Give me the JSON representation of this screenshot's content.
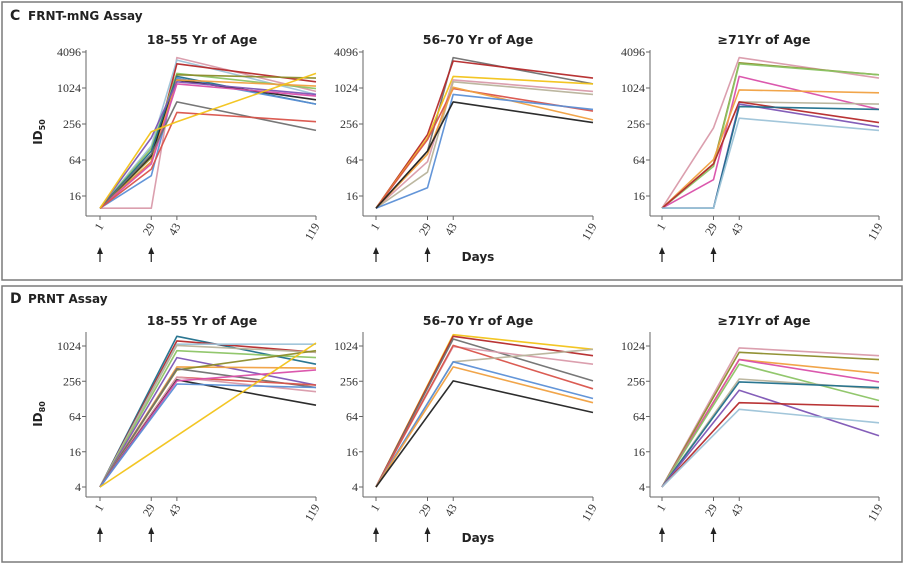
{
  "colors": {
    "darkred": "#b5292a",
    "red": "#d9534a",
    "yellow": "#f2c318",
    "gray": "#707070",
    "black": "#222222",
    "blue": "#5b8fd6",
    "lightblue": "#9dc3d8",
    "pink": "#d99aaa",
    "green": "#8cc465",
    "olive": "#8c8c2a",
    "teal": "#1f6f8b",
    "magenta": "#d94fa9",
    "purple": "#7d55b5",
    "orange": "#f0a040",
    "khaki": "#b8b39b"
  },
  "panels": [
    {
      "letter": "C",
      "title": "FRNT-mNG Assay",
      "ylabel": "ID",
      "ylabel_sub": "50",
      "xlabel": "Days"
    },
    {
      "letter": "D",
      "title": "PRNT Assay",
      "ylabel": "ID",
      "ylabel_sub": "80",
      "xlabel": "Days"
    }
  ],
  "chart_data": [
    {
      "type": "line",
      "panel": "C",
      "title": "18–55 Yr of Age",
      "x": [
        1,
        29,
        43,
        119
      ],
      "x_ticks": [
        "1",
        "29",
        "43",
        "119"
      ],
      "y_scale": "log2",
      "y_ticks": [
        "16",
        "64",
        "256",
        "1024",
        "4096"
      ],
      "ylim": [
        7,
        4096
      ],
      "dose_arrows_at_days": [
        1,
        29
      ],
      "series": [
        {
          "color": "pink",
          "values": [
            10,
            10,
            3300,
            900
          ]
        },
        {
          "color": "lightblue",
          "values": [
            10,
            110,
            3000,
            800
          ]
        },
        {
          "color": "darkred",
          "values": [
            10,
            60,
            2600,
            1300
          ]
        },
        {
          "color": "green",
          "values": [
            10,
            100,
            1800,
            1000
          ]
        },
        {
          "color": "olive",
          "values": [
            10,
            70,
            1700,
            1500
          ]
        },
        {
          "color": "teal",
          "values": [
            10,
            90,
            1600,
            550
          ]
        },
        {
          "color": "blue",
          "values": [
            10,
            35,
            1500,
            550
          ]
        },
        {
          "color": "black",
          "values": [
            10,
            75,
            1400,
            650
          ]
        },
        {
          "color": "orange",
          "values": [
            10,
            60,
            1400,
            1100
          ]
        },
        {
          "color": "purple",
          "values": [
            10,
            150,
            1300,
            800
          ]
        },
        {
          "color": "magenta",
          "values": [
            10,
            55,
            1200,
            750
          ]
        },
        {
          "color": "gray",
          "values": [
            10,
            80,
            600,
            200
          ]
        },
        {
          "color": "red",
          "values": [
            10,
            45,
            400,
            280
          ]
        },
        {
          "color": "yellow",
          "values": [
            10,
            190,
            280,
            1800
          ]
        }
      ]
    },
    {
      "type": "line",
      "panel": "C",
      "title": "56–70 Yr of Age",
      "x": [
        1,
        29,
        43,
        119
      ],
      "x_ticks": [
        "1",
        "29",
        "43",
        "119"
      ],
      "y_scale": "log2",
      "y_ticks": [
        "16",
        "64",
        "256",
        "1024",
        "4096"
      ],
      "ylim": [
        7,
        4096
      ],
      "dose_arrows_at_days": [
        1,
        29
      ],
      "series": [
        {
          "color": "gray",
          "values": [
            10,
            90,
            3300,
            1200
          ]
        },
        {
          "color": "darkred",
          "values": [
            10,
            170,
            2900,
            1500
          ]
        },
        {
          "color": "yellow",
          "values": [
            10,
            150,
            1600,
            1200
          ]
        },
        {
          "color": "pink",
          "values": [
            10,
            60,
            1400,
            900
          ]
        },
        {
          "color": "khaki",
          "values": [
            10,
            40,
            1300,
            800
          ]
        },
        {
          "color": "red",
          "values": [
            10,
            140,
            1000,
            420
          ]
        },
        {
          "color": "orange",
          "values": [
            10,
            80,
            1050,
            300
          ]
        },
        {
          "color": "blue",
          "values": [
            10,
            22,
            800,
            450
          ]
        },
        {
          "color": "black",
          "values": [
            10,
            90,
            600,
            270
          ]
        }
      ]
    },
    {
      "type": "line",
      "panel": "C",
      "title": "≥71Yr of Age",
      "x": [
        1,
        29,
        43,
        119
      ],
      "x_ticks": [
        "1",
        "29",
        "43",
        "119"
      ],
      "y_scale": "log2",
      "y_ticks": [
        "16",
        "64",
        "256",
        "1024",
        "4096"
      ],
      "ylim": [
        7,
        4096
      ],
      "dose_arrows_at_days": [
        1,
        29
      ],
      "series": [
        {
          "color": "pink",
          "values": [
            10,
            220,
            3300,
            1500
          ]
        },
        {
          "color": "olive",
          "values": [
            10,
            55,
            2700,
            1700
          ]
        },
        {
          "color": "green",
          "values": [
            10,
            50,
            2600,
            1700
          ]
        },
        {
          "color": "magenta",
          "values": [
            10,
            30,
            1600,
            450
          ]
        },
        {
          "color": "orange",
          "values": [
            10,
            65,
            950,
            850
          ]
        },
        {
          "color": "khaki",
          "values": [
            10,
            55,
            600,
            550
          ]
        },
        {
          "color": "darkred",
          "values": [
            10,
            55,
            600,
            270
          ]
        },
        {
          "color": "purple",
          "values": [
            10,
            10,
            550,
            230
          ]
        },
        {
          "color": "teal",
          "values": [
            10,
            10,
            500,
            450
          ]
        },
        {
          "color": "lightblue",
          "values": [
            10,
            10,
            320,
            200
          ]
        }
      ]
    },
    {
      "type": "line",
      "panel": "D",
      "title": "18–55 Yr of Age",
      "x": [
        1,
        29,
        43,
        119
      ],
      "x_ticks": [
        "1",
        "29",
        "43",
        "119"
      ],
      "y_scale": "log2",
      "y_ticks": [
        "4",
        "16",
        "64",
        "256",
        "1024"
      ],
      "ylim": [
        2.8,
        1900
      ],
      "dose_arrows_at_days": [
        1,
        29
      ],
      "series": [
        {
          "color": "teal",
          "values": [
            4,
            null,
            1500,
            500
          ]
        },
        {
          "color": "darkred",
          "values": [
            4,
            null,
            1250,
            800
          ]
        },
        {
          "color": "lightblue",
          "values": [
            4,
            null,
            1100,
            1100
          ]
        },
        {
          "color": "khaki",
          "values": [
            4,
            null,
            1050,
            800
          ]
        },
        {
          "color": "green",
          "values": [
            4,
            null,
            850,
            650
          ]
        },
        {
          "color": "purple",
          "values": [
            4,
            null,
            650,
            220
          ]
        },
        {
          "color": "orange",
          "values": [
            4,
            null,
            450,
            430
          ]
        },
        {
          "color": "olive",
          "values": [
            4,
            null,
            400,
            850
          ]
        },
        {
          "color": "gray",
          "values": [
            4,
            null,
            420,
            200
          ]
        },
        {
          "color": "red",
          "values": [
            4,
            null,
            300,
            220
          ]
        },
        {
          "color": "pink",
          "values": [
            4,
            null,
            300,
            170
          ]
        },
        {
          "color": "black",
          "values": [
            4,
            null,
            270,
            100
          ]
        },
        {
          "color": "magenta",
          "values": [
            4,
            null,
            260,
            400
          ]
        },
        {
          "color": "blue",
          "values": [
            4,
            null,
            230,
            200
          ]
        },
        {
          "color": "yellow",
          "values": [
            4,
            null,
            null,
            1150
          ]
        }
      ]
    },
    {
      "type": "line",
      "panel": "D",
      "title": "56–70 Yr of Age",
      "x": [
        1,
        29,
        43,
        119
      ],
      "x_ticks": [
        "1",
        "29",
        "43",
        "119"
      ],
      "y_scale": "log2",
      "y_ticks": [
        "4",
        "16",
        "64",
        "256",
        "1024"
      ],
      "ylim": [
        2.8,
        1900
      ],
      "dose_arrows_at_days": [
        1,
        29
      ],
      "series": [
        {
          "color": "yellow",
          "values": [
            4,
            null,
            1600,
            900
          ]
        },
        {
          "color": "darkred",
          "values": [
            4,
            null,
            1500,
            700
          ]
        },
        {
          "color": "gray",
          "values": [
            4,
            null,
            1350,
            260
          ]
        },
        {
          "color": "pink",
          "values": [
            4,
            null,
            1000,
            500
          ]
        },
        {
          "color": "red",
          "values": [
            4,
            null,
            1050,
            190
          ]
        },
        {
          "color": "khaki",
          "values": [
            4,
            null,
            550,
            900
          ]
        },
        {
          "color": "blue",
          "values": [
            4,
            null,
            550,
            130
          ]
        },
        {
          "color": "orange",
          "values": [
            4,
            null,
            450,
            110
          ]
        },
        {
          "color": "black",
          "values": [
            4,
            null,
            260,
            75
          ]
        }
      ]
    },
    {
      "type": "line",
      "panel": "D",
      "title": "≥71Yr of Age",
      "x": [
        1,
        29,
        43,
        119
      ],
      "x_ticks": [
        "1",
        "29",
        "43",
        "119"
      ],
      "y_scale": "log2",
      "y_ticks": [
        "4",
        "16",
        "64",
        "256",
        "1024"
      ],
      "ylim": [
        2.8,
        1900
      ],
      "dose_arrows_at_days": [
        1,
        29
      ],
      "series": [
        {
          "color": "pink",
          "values": [
            4,
            null,
            950,
            700
          ]
        },
        {
          "color": "olive",
          "values": [
            4,
            null,
            800,
            600
          ]
        },
        {
          "color": "orange",
          "values": [
            4,
            null,
            600,
            350
          ]
        },
        {
          "color": "magenta",
          "values": [
            4,
            null,
            600,
            250
          ]
        },
        {
          "color": "green",
          "values": [
            4,
            null,
            500,
            120
          ]
        },
        {
          "color": "khaki",
          "values": [
            4,
            null,
            280,
            190
          ]
        },
        {
          "color": "teal",
          "values": [
            4,
            null,
            250,
            200
          ]
        },
        {
          "color": "purple",
          "values": [
            4,
            null,
            180,
            30
          ]
        },
        {
          "color": "darkred",
          "values": [
            4,
            null,
            110,
            95
          ]
        },
        {
          "color": "lightblue",
          "values": [
            4,
            null,
            85,
            50
          ]
        }
      ]
    }
  ]
}
